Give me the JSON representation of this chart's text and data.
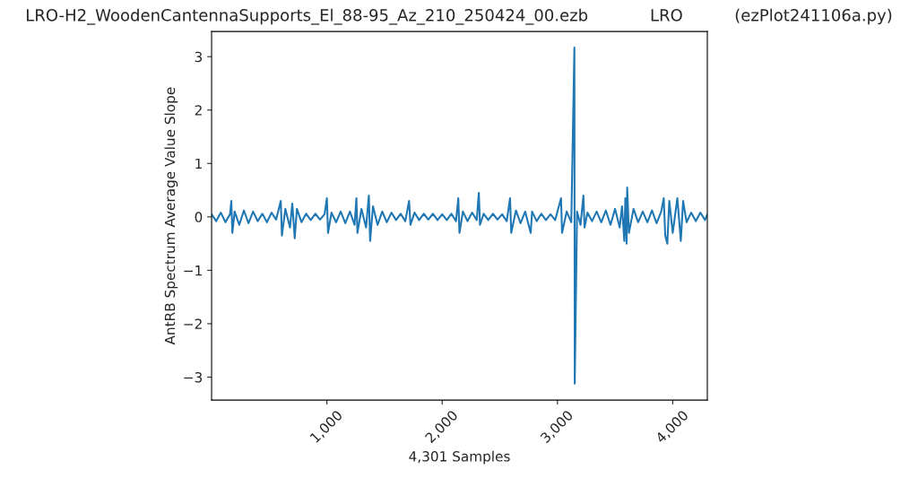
{
  "chart_data": {
    "type": "line",
    "title": "LRO-H2_WoodenCantennaSupports_El_88-95_Az_210_250424_00.ezb            LRO          (ezPlot241106a.py)",
    "xlabel": "4,301 Samples",
    "ylabel": "AntRB Spectrum Average Value Slope",
    "xlim": [
      0,
      4300
    ],
    "ylim": [
      -3.43,
      3.47
    ],
    "xticks": [
      {
        "value": 1000,
        "label": "1,000"
      },
      {
        "value": 2000,
        "label": "2,000"
      },
      {
        "value": 3000,
        "label": "3,000"
      },
      {
        "value": 4000,
        "label": "4,000"
      }
    ],
    "yticks": [
      {
        "value": -3,
        "label": "−3"
      },
      {
        "value": -2,
        "label": "−2"
      },
      {
        "value": -1,
        "label": "−1"
      },
      0,
      1,
      2,
      3
    ],
    "grid": false,
    "legend": false,
    "series": [
      {
        "color": "#1f77b4",
        "x": [
          0,
          40,
          80,
          120,
          160,
          171,
          180,
          200,
          240,
          280,
          320,
          360,
          400,
          440,
          480,
          520,
          560,
          600,
          610,
          640,
          680,
          700,
          721,
          740,
          780,
          820,
          860,
          900,
          940,
          980,
          1000,
          1010,
          1040,
          1080,
          1120,
          1160,
          1200,
          1240,
          1256,
          1265,
          1300,
          1340,
          1364,
          1375,
          1400,
          1440,
          1480,
          1520,
          1560,
          1600,
          1640,
          1680,
          1713,
          1725,
          1760,
          1800,
          1840,
          1880,
          1920,
          1960,
          2000,
          2040,
          2080,
          2120,
          2140,
          2150,
          2180,
          2220,
          2260,
          2300,
          2318,
          2328,
          2360,
          2400,
          2440,
          2480,
          2520,
          2560,
          2589,
          2599,
          2640,
          2680,
          2720,
          2768,
          2780,
          2820,
          2860,
          2900,
          2940,
          2980,
          3031,
          3040,
          3080,
          3120,
          3147,
          3150,
          3170,
          3200,
          3225,
          3235,
          3260,
          3300,
          3340,
          3380,
          3420,
          3460,
          3500,
          3540,
          3560,
          3580,
          3589,
          3600,
          3605,
          3620,
          3660,
          3700,
          3740,
          3780,
          3820,
          3860,
          3900,
          3922,
          3935,
          3953,
          3970,
          4000,
          4040,
          4070,
          4090,
          4120,
          4160,
          4200,
          4240,
          4280,
          4300
        ],
        "values": [
          0.05,
          -0.08,
          0.08,
          -0.1,
          0.05,
          0.3,
          -0.3,
          0.1,
          -0.15,
          0.12,
          -0.12,
          0.1,
          -0.08,
          0.06,
          -0.1,
          0.08,
          -0.05,
          0.3,
          -0.35,
          0.15,
          -0.2,
          0.25,
          -0.4,
          0.15,
          -0.1,
          0.06,
          -0.06,
          0.06,
          -0.05,
          0.05,
          0.35,
          -0.3,
          0.08,
          -0.1,
          0.1,
          -0.12,
          0.1,
          -0.15,
          0.35,
          -0.3,
          0.15,
          -0.2,
          0.4,
          -0.45,
          0.2,
          -0.15,
          0.1,
          -0.1,
          0.08,
          -0.06,
          0.06,
          -0.08,
          0.3,
          -0.15,
          0.08,
          -0.06,
          0.06,
          -0.05,
          0.06,
          -0.06,
          0.05,
          -0.06,
          0.06,
          -0.08,
          0.35,
          -0.3,
          0.1,
          -0.08,
          0.08,
          -0.06,
          0.45,
          -0.15,
          0.06,
          -0.06,
          0.06,
          -0.05,
          0.05,
          -0.08,
          0.35,
          -0.3,
          0.12,
          -0.12,
          0.1,
          -0.3,
          0.1,
          -0.08,
          0.06,
          -0.06,
          0.05,
          -0.06,
          0.35,
          -0.3,
          0.1,
          -0.1,
          3.17,
          -3.12,
          0.1,
          -0.15,
          0.4,
          -0.2,
          0.08,
          -0.08,
          0.1,
          -0.1,
          0.12,
          -0.15,
          0.15,
          -0.2,
          0.2,
          -0.45,
          0.35,
          -0.5,
          0.55,
          -0.3,
          0.15,
          -0.1,
          0.1,
          -0.1,
          0.12,
          -0.12,
          0.1,
          0.35,
          -0.35,
          -0.5,
          0.3,
          -0.3,
          0.35,
          -0.45,
          0.3,
          -0.1,
          0.08,
          -0.08,
          0.08,
          -0.06,
          0.05
        ]
      }
    ]
  }
}
